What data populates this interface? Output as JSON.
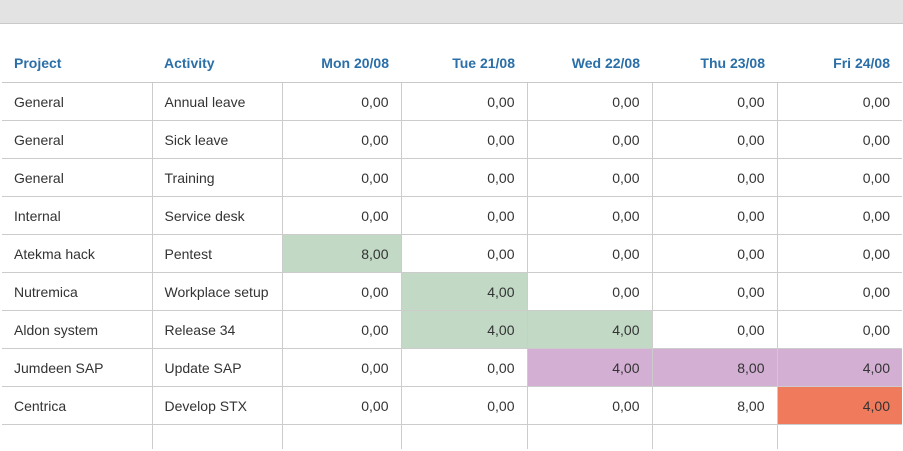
{
  "colors": {
    "header_text": "#2b6fa8",
    "green_cell": "#c1d9c5",
    "purple_cell": "#d3afd4",
    "red_cell": "#ef7a5c"
  },
  "timesheet": {
    "headers": {
      "project": "Project",
      "activity": "Activity",
      "days": [
        "Mon 20/08",
        "Tue 21/08",
        "Wed 22/08",
        "Thu 23/08",
        "Fri 24/08"
      ]
    },
    "rows": [
      {
        "project": "General",
        "activity": "Annual leave",
        "hours": [
          "0,00",
          "0,00",
          "0,00",
          "0,00",
          "0,00"
        ],
        "highlight": [
          "",
          "",
          "",
          "",
          ""
        ]
      },
      {
        "project": "General",
        "activity": "Sick leave",
        "hours": [
          "0,00",
          "0,00",
          "0,00",
          "0,00",
          "0,00"
        ],
        "highlight": [
          "",
          "",
          "",
          "",
          ""
        ]
      },
      {
        "project": "General",
        "activity": "Training",
        "hours": [
          "0,00",
          "0,00",
          "0,00",
          "0,00",
          "0,00"
        ],
        "highlight": [
          "",
          "",
          "",
          "",
          ""
        ]
      },
      {
        "project": "Internal",
        "activity": "Service desk",
        "hours": [
          "0,00",
          "0,00",
          "0,00",
          "0,00",
          "0,00"
        ],
        "highlight": [
          "",
          "",
          "",
          "",
          ""
        ]
      },
      {
        "project": "Atekma hack",
        "activity": "Pentest",
        "hours": [
          "8,00",
          "0,00",
          "0,00",
          "0,00",
          "0,00"
        ],
        "highlight": [
          "green",
          "",
          "",
          "",
          ""
        ]
      },
      {
        "project": "Nutremica",
        "activity": "Workplace setup",
        "hours": [
          "0,00",
          "4,00",
          "0,00",
          "0,00",
          "0,00"
        ],
        "highlight": [
          "",
          "green",
          "",
          "",
          ""
        ]
      },
      {
        "project": "Aldon system",
        "activity": "Release 34",
        "hours": [
          "0,00",
          "4,00",
          "4,00",
          "0,00",
          "0,00"
        ],
        "highlight": [
          "",
          "green",
          "green",
          "",
          ""
        ]
      },
      {
        "project": "Jumdeen SAP",
        "activity": "Update SAP",
        "hours": [
          "0,00",
          "0,00",
          "4,00",
          "8,00",
          "4,00"
        ],
        "highlight": [
          "",
          "",
          "purple",
          "purple",
          "purple"
        ]
      },
      {
        "project": "Centrica",
        "activity": "Develop STX",
        "hours": [
          "0,00",
          "0,00",
          "0,00",
          "8,00",
          "4,00"
        ],
        "highlight": [
          "",
          "",
          "",
          "",
          "red"
        ]
      }
    ]
  }
}
